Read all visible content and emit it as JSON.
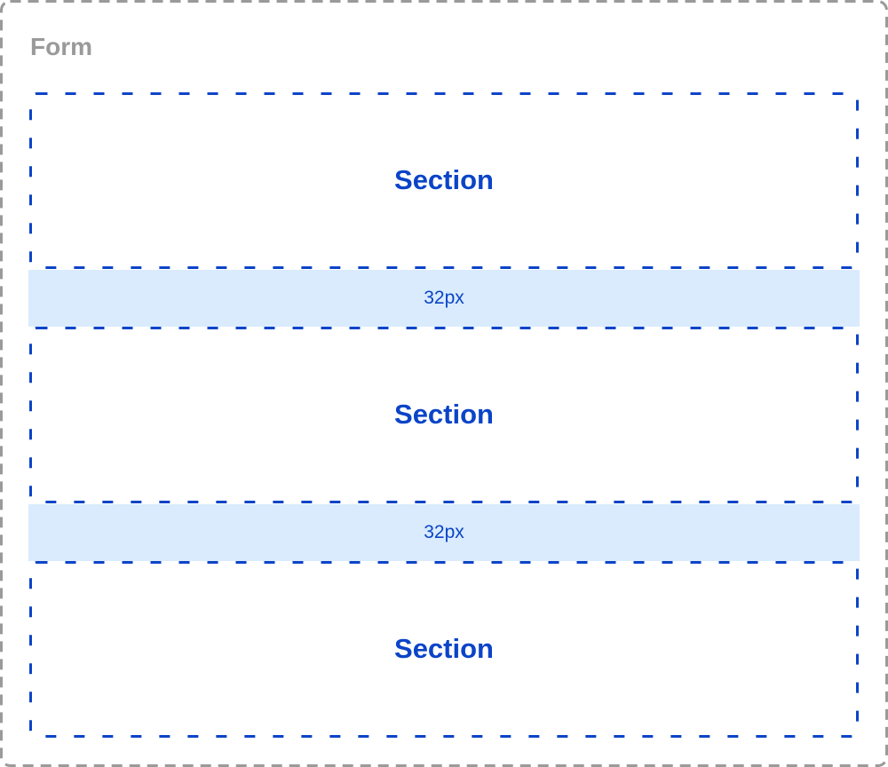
{
  "form": {
    "title": "Form"
  },
  "sections": [
    {
      "label": "Section"
    },
    {
      "label": "Section"
    },
    {
      "label": "Section"
    }
  ],
  "gaps": [
    {
      "label": "32px"
    },
    {
      "label": "32px"
    }
  ],
  "colors": {
    "form_border": "#9a9a9a",
    "section_border": "#0b44c8",
    "gap_fill": "#d9ebfd"
  }
}
